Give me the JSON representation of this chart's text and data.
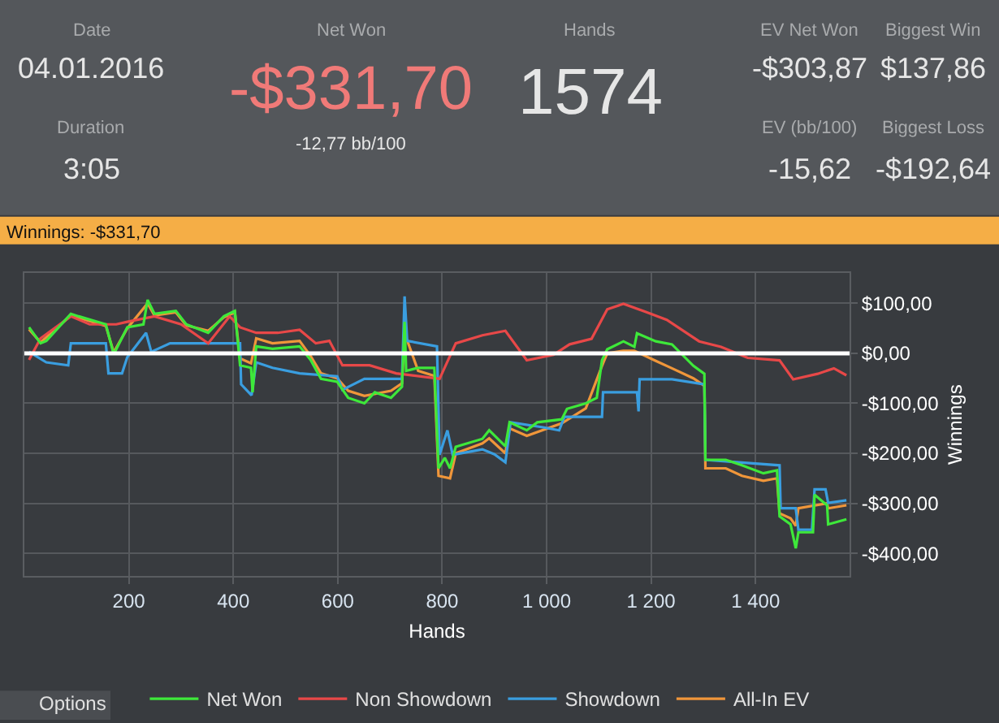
{
  "chart_data": {
    "type": "line",
    "title": "Winnings: -$331,70",
    "xlabel": "Hands",
    "ylabel": "Winnings",
    "annotations": [
      "Date",
      "04.01.2016",
      "Duration",
      "3:05",
      "Net Won",
      "-$331,70",
      "-12,77 bb/100",
      "Hands",
      "1574",
      "EV Net Won",
      "-$303,87",
      "Biggest Win",
      "$137,86",
      "EV (bb/100)",
      "-15,62",
      "Biggest Loss",
      "-$192,64",
      "Options"
    ],
    "xlim": [
      0,
      1580
    ],
    "xticks": [
      200,
      400,
      600,
      800,
      {
        "value": 1000,
        "label": "1 000"
      },
      {
        "value": 1200,
        "label": "1 200"
      },
      {
        "value": 1400,
        "label": "1 400"
      }
    ],
    "ylim": [
      -445,
      160
    ],
    "yticks": [
      {
        "value": 100,
        "label": "$100,00"
      },
      {
        "value": 0,
        "label": "$0,00"
      },
      {
        "value": -100,
        "label": "-$100,00"
      },
      {
        "value": -200,
        "label": "-$200,00"
      },
      {
        "value": -300,
        "label": "-$300,00"
      },
      {
        "value": -400,
        "label": "-$400,00"
      }
    ],
    "grid": true,
    "legend": "bottom",
    "ref_lines": [
      {
        "axis": "y",
        "value": 0,
        "label": null,
        "color": "#ffffff"
      }
    ],
    "series": [
      {
        "name": "Net Won",
        "color": "#3ee83a",
        "x": [
          9,
          31,
          42,
          89,
          104,
          156,
          171,
          197,
          228,
          236,
          249,
          290,
          310,
          352,
          382,
          403,
          413,
          434,
          437,
          444,
          475,
          527,
          548,
          568,
          599,
          620,
          651,
          671,
          702,
          723,
          728,
          731,
          754,
          785,
          793,
          805,
          815,
          826,
          877,
          890,
          921,
          929,
          962,
          982,
          1029,
          1039,
          1075,
          1096,
          1106,
          1116,
          1147,
          1168,
          1173,
          1209,
          1240,
          1281,
          1302,
          1304,
          1343,
          1374,
          1415,
          1441,
          1446,
          1467,
          1477,
          1482,
          1510,
          1513,
          1537,
          1539,
          1574
        ],
        "values": [
          52,
          20,
          25,
          79,
          74,
          58,
          -2,
          52,
          58,
          107,
          79,
          85,
          58,
          41,
          74,
          85,
          -24,
          -29,
          -78,
          14,
          9,
          14,
          -13,
          -51,
          -57,
          -89,
          -100,
          -78,
          -89,
          -67,
          63,
          -35,
          -29,
          -29,
          -230,
          -209,
          -230,
          -187,
          -171,
          -154,
          -186,
          -138,
          -154,
          -138,
          -132,
          -111,
          -100,
          -89,
          -14,
          8,
          24,
          13,
          40,
          24,
          18,
          -25,
          -41,
          -213,
          -213,
          -224,
          -240,
          -234,
          -326,
          -342,
          -390,
          -358,
          -358,
          -283,
          -304,
          -342,
          -332
        ]
      },
      {
        "name": "Non Showdown",
        "color": "#e84848",
        "x": [
          9,
          31,
          89,
          125,
          176,
          197,
          249,
          300,
          352,
          393,
          413,
          444,
          485,
          527,
          558,
          584,
          609,
          661,
          712,
          795,
          826,
          877,
          921,
          962,
          1013,
          1044,
          1086,
          1116,
          1147,
          1189,
          1230,
          1292,
          1334,
          1385,
          1446,
          1472,
          1519,
          1550,
          1574
        ],
        "values": [
          -13,
          30,
          74,
          58,
          58,
          63,
          74,
          58,
          20,
          74,
          52,
          41,
          41,
          47,
          20,
          25,
          -24,
          -24,
          -40,
          -51,
          20,
          36,
          45,
          -14,
          -3,
          18,
          29,
          88,
          99,
          83,
          67,
          24,
          13,
          -9,
          -14,
          -52,
          -41,
          -30,
          -44
        ]
      },
      {
        "name": "Showdown",
        "color": "#3a9ee0",
        "x": [
          9,
          42,
          84,
          89,
          156,
          161,
          187,
          197,
          233,
          243,
          279,
          413,
          415,
          435,
          444,
          475,
          527,
          599,
          609,
          651,
          723,
          728,
          733,
          790,
          795,
          810,
          820,
          877,
          900,
          921,
          931,
          993,
          1024,
          1034,
          1106,
          1108,
          1173,
          1176,
          1178,
          1240,
          1302,
          1304,
          1446,
          1448,
          1477,
          1482,
          1508,
          1513,
          1534,
          1539,
          1574
        ],
        "values": [
          3,
          -18,
          -24,
          20,
          20,
          -40,
          -40,
          -8,
          41,
          3,
          20,
          20,
          -62,
          -84,
          -18,
          -29,
          -40,
          -46,
          -73,
          -51,
          -51,
          114,
          25,
          14,
          -203,
          -154,
          -203,
          -192,
          -202,
          -218,
          -138,
          -148,
          -154,
          -127,
          -127,
          -78,
          -78,
          -116,
          -52,
          -52,
          -62,
          -213,
          -224,
          -310,
          -310,
          -353,
          -353,
          -272,
          -272,
          -299,
          -294
        ]
      },
      {
        "name": "All-In EV",
        "color": "#f0963a",
        "x": [
          9,
          31,
          89,
          156,
          171,
          197,
          236,
          249,
          290,
          310,
          352,
          382,
          403,
          413,
          434,
          444,
          475,
          527,
          548,
          568,
          599,
          620,
          651,
          702,
          723,
          728,
          754,
          785,
          793,
          815,
          826,
          877,
          890,
          921,
          929,
          962,
          1029,
          1075,
          1106,
          1116,
          1147,
          1168,
          1209,
          1240,
          1281,
          1302,
          1304,
          1343,
          1374,
          1415,
          1441,
          1446,
          1467,
          1477,
          1482,
          1537,
          1539,
          1574
        ],
        "values": [
          48,
          22,
          76,
          55,
          2,
          50,
          100,
          76,
          82,
          56,
          45,
          72,
          82,
          -10,
          -20,
          30,
          20,
          25,
          -5,
          -40,
          -50,
          -75,
          -85,
          -75,
          -60,
          40,
          -35,
          -45,
          -245,
          -250,
          -200,
          -180,
          -170,
          -200,
          -150,
          -165,
          -140,
          -110,
          -25,
          0,
          5,
          5,
          -15,
          -30,
          -50,
          -65,
          -230,
          -230,
          -245,
          -255,
          -250,
          -320,
          -330,
          -345,
          -310,
          -300,
          -310,
          -304
        ]
      }
    ]
  }
}
